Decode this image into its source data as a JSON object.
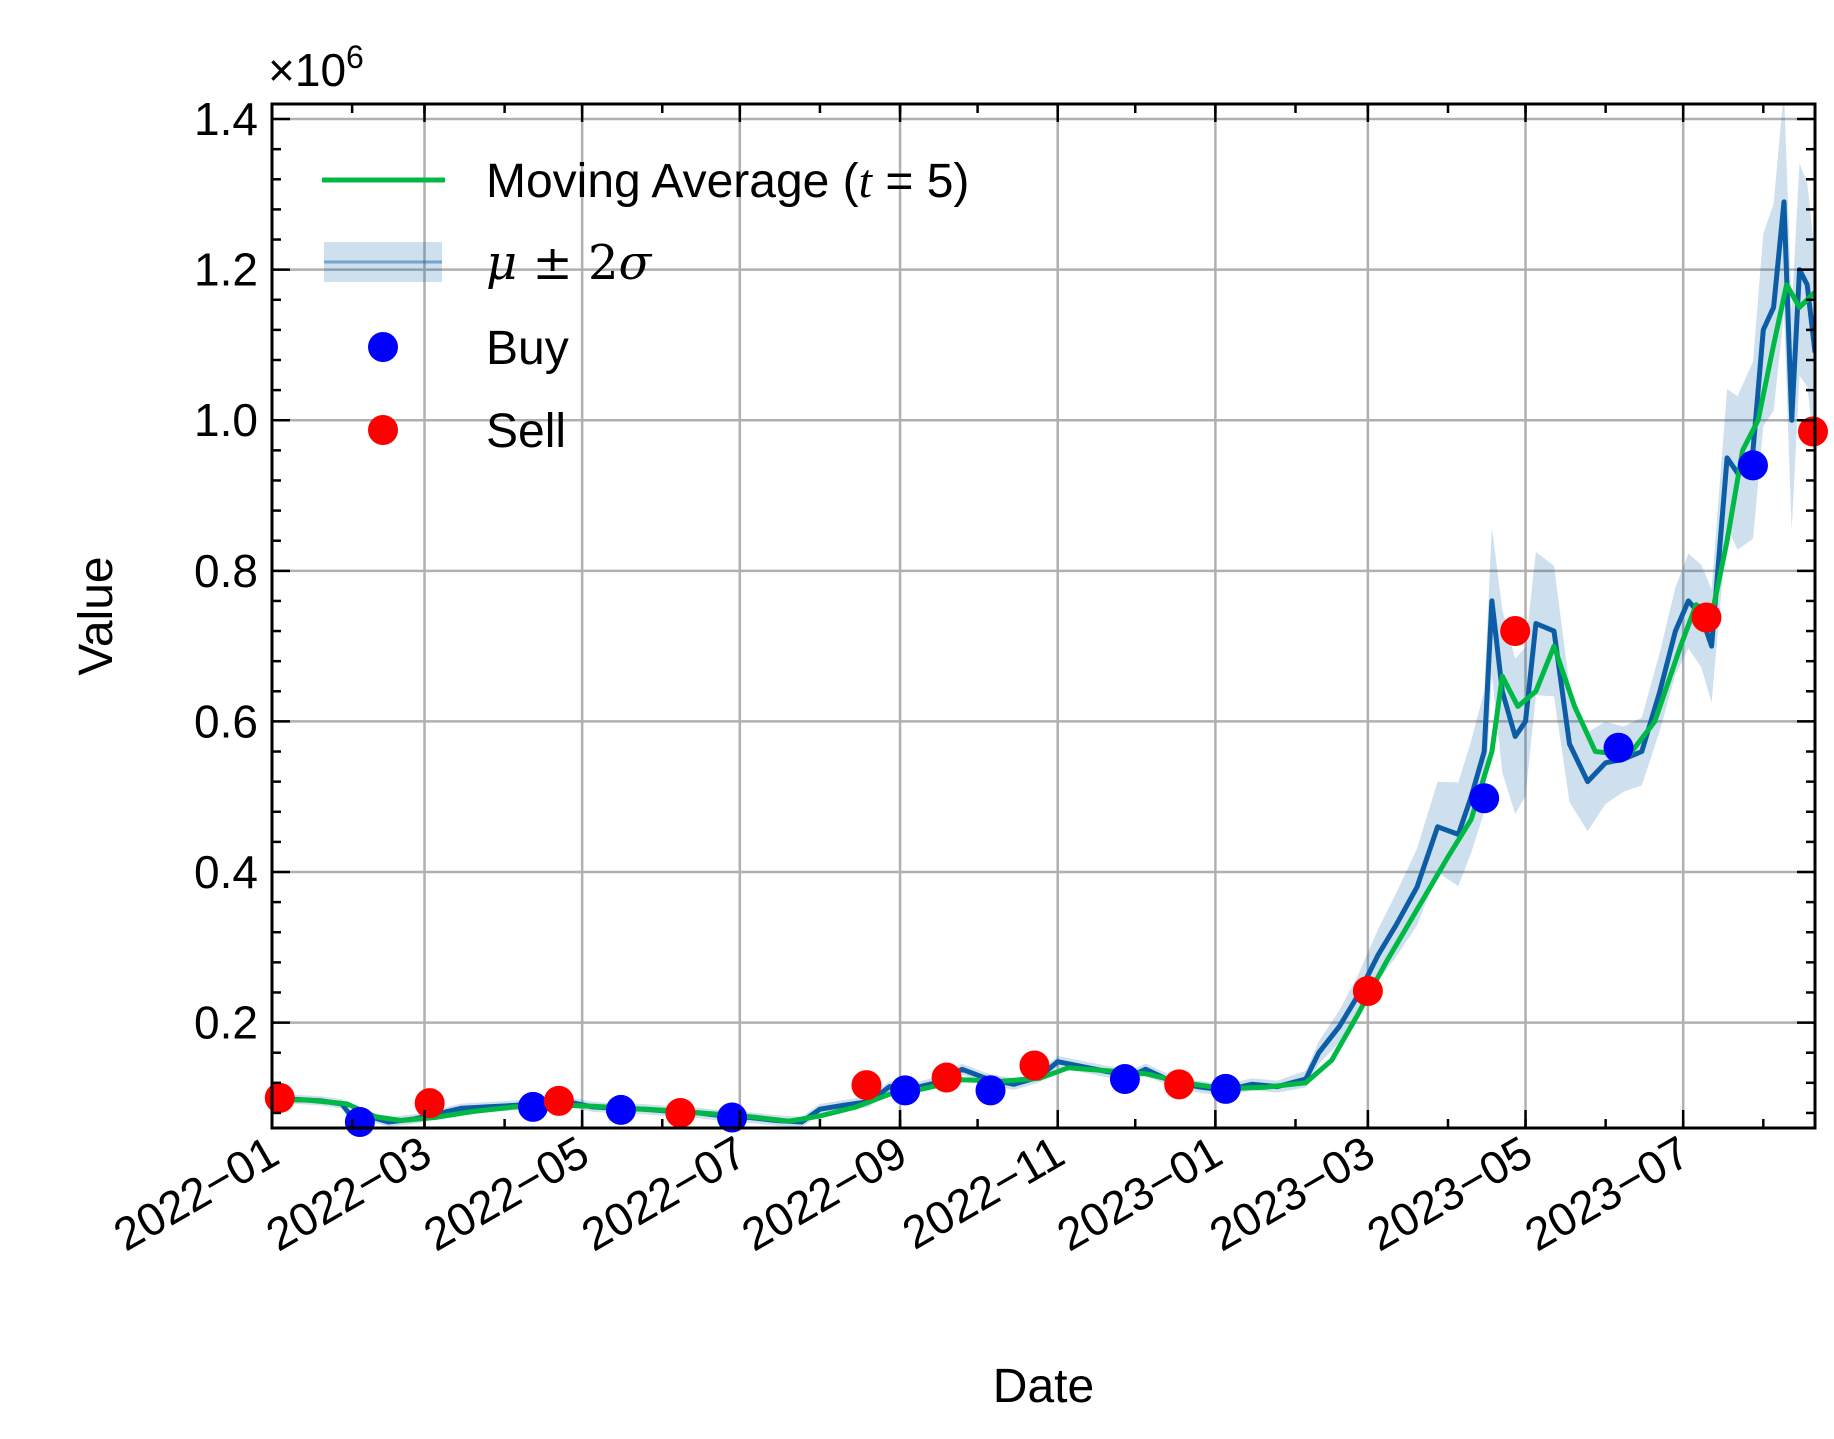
{
  "chart_data": {
    "type": "line",
    "title": "",
    "xlabel": "Date",
    "ylabel": "Value",
    "y_multiplier_label": "×10",
    "y_multiplier_exponent": "6",
    "y_scale": 1000000,
    "ylim": [
      60000,
      1420000
    ],
    "y_ticks": [
      200000,
      400000,
      600000,
      800000,
      1000000,
      1200000,
      1400000
    ],
    "y_tick_labels": [
      "0.2",
      "0.4",
      "0.6",
      "0.8",
      "1.0",
      "1.2",
      "1.4"
    ],
    "xlim": [
      "2022-01-01",
      "2023-08-21"
    ],
    "x_ticks": [
      "2022-01-01",
      "2022-03-01",
      "2022-05-01",
      "2022-07-01",
      "2022-09-01",
      "2022-11-01",
      "2023-01-01",
      "2023-03-01",
      "2023-05-01",
      "2023-07-01"
    ],
    "x_tick_labels": [
      "2022−01",
      "2022−03",
      "2022−05",
      "2022−07",
      "2022−09",
      "2022−11",
      "2023−01",
      "2023−03",
      "2023−05",
      "2023−07"
    ],
    "grid": true,
    "legend_position": "top-left",
    "legend": [
      {
        "label": "Moving Average (",
        "label_italic": "t",
        "label_after": " = 5)",
        "kind": "line"
      },
      {
        "label_math": [
          "μ",
          " ± 2",
          "σ"
        ],
        "kind": "band"
      },
      {
        "label": "Buy",
        "kind": "marker"
      },
      {
        "label": "Sell",
        "kind": "marker"
      }
    ],
    "colors": {
      "value_line": "#0c5da5",
      "moving_average": "#00b945",
      "band": "#0c5da5",
      "buy": "#0000ff",
      "sell": "#ff0000"
    },
    "value_series": [
      [
        "2022-01-01",
        100000
      ],
      [
        "2022-01-10",
        98000
      ],
      [
        "2022-01-20",
        96000
      ],
      [
        "2022-01-28",
        92000
      ],
      [
        "2022-02-03",
        65000
      ],
      [
        "2022-02-08",
        75000
      ],
      [
        "2022-02-15",
        68000
      ],
      [
        "2022-02-25",
        72000
      ],
      [
        "2022-03-05",
        78000
      ],
      [
        "2022-03-15",
        86000
      ],
      [
        "2022-03-25",
        88000
      ],
      [
        "2022-04-05",
        90000
      ],
      [
        "2022-04-15",
        93000
      ],
      [
        "2022-04-25",
        95000
      ],
      [
        "2022-05-05",
        88000
      ],
      [
        "2022-05-15",
        86000
      ],
      [
        "2022-05-25",
        85000
      ],
      [
        "2022-06-05",
        82000
      ],
      [
        "2022-06-15",
        80000
      ],
      [
        "2022-06-25",
        76000
      ],
      [
        "2022-07-05",
        74000
      ],
      [
        "2022-07-15",
        70000
      ],
      [
        "2022-07-25",
        68000
      ],
      [
        "2022-08-01",
        85000
      ],
      [
        "2022-08-10",
        90000
      ],
      [
        "2022-08-20",
        95000
      ],
      [
        "2022-08-28",
        115000
      ],
      [
        "2022-09-05",
        112000
      ],
      [
        "2022-09-15",
        120000
      ],
      [
        "2022-09-25",
        138000
      ],
      [
        "2022-10-05",
        125000
      ],
      [
        "2022-10-15",
        118000
      ],
      [
        "2022-10-25",
        128000
      ],
      [
        "2022-11-01",
        148000
      ],
      [
        "2022-11-10",
        142000
      ],
      [
        "2022-11-20",
        135000
      ],
      [
        "2022-11-30",
        130000
      ],
      [
        "2022-12-05",
        138000
      ],
      [
        "2022-12-15",
        122000
      ],
      [
        "2022-12-25",
        115000
      ],
      [
        "2023-01-05",
        110000
      ],
      [
        "2023-01-15",
        118000
      ],
      [
        "2023-01-25",
        115000
      ],
      [
        "2023-02-05",
        125000
      ],
      [
        "2023-02-10",
        160000
      ],
      [
        "2023-02-18",
        195000
      ],
      [
        "2023-02-25",
        235000
      ],
      [
        "2023-03-05",
        290000
      ],
      [
        "2023-03-12",
        330000
      ],
      [
        "2023-03-20",
        380000
      ],
      [
        "2023-03-28",
        460000
      ],
      [
        "2023-04-05",
        450000
      ],
      [
        "2023-04-10",
        500000
      ],
      [
        "2023-04-15",
        560000
      ],
      [
        "2023-04-18",
        760000
      ],
      [
        "2023-04-22",
        640000
      ],
      [
        "2023-04-27",
        580000
      ],
      [
        "2023-05-01",
        600000
      ],
      [
        "2023-05-05",
        730000
      ],
      [
        "2023-05-12",
        720000
      ],
      [
        "2023-05-18",
        570000
      ],
      [
        "2023-05-25",
        520000
      ],
      [
        "2023-06-01",
        545000
      ],
      [
        "2023-06-08",
        550000
      ],
      [
        "2023-06-15",
        560000
      ],
      [
        "2023-06-22",
        640000
      ],
      [
        "2023-06-28",
        720000
      ],
      [
        "2023-07-03",
        760000
      ],
      [
        "2023-07-08",
        740000
      ],
      [
        "2023-07-12",
        700000
      ],
      [
        "2023-07-18",
        950000
      ],
      [
        "2023-07-22",
        930000
      ],
      [
        "2023-07-28",
        960000
      ],
      [
        "2023-08-01",
        1120000
      ],
      [
        "2023-08-05",
        1150000
      ],
      [
        "2023-08-09",
        1290000
      ],
      [
        "2023-08-12",
        1000000
      ],
      [
        "2023-08-15",
        1200000
      ],
      [
        "2023-08-18",
        1180000
      ],
      [
        "2023-08-21",
        1090000
      ]
    ],
    "moving_average": [
      [
        "2022-01-01",
        98000
      ],
      [
        "2022-01-15",
        97000
      ],
      [
        "2022-01-30",
        92000
      ],
      [
        "2022-02-10",
        75000
      ],
      [
        "2022-02-20",
        70000
      ],
      [
        "2022-03-05",
        74000
      ],
      [
        "2022-03-20",
        82000
      ],
      [
        "2022-04-05",
        88000
      ],
      [
        "2022-04-20",
        91000
      ],
      [
        "2022-05-05",
        89000
      ],
      [
        "2022-05-20",
        86000
      ],
      [
        "2022-06-05",
        83000
      ],
      [
        "2022-06-20",
        79000
      ],
      [
        "2022-07-05",
        75000
      ],
      [
        "2022-07-20",
        69000
      ],
      [
        "2022-08-01",
        76000
      ],
      [
        "2022-08-15",
        88000
      ],
      [
        "2022-08-28",
        105000
      ],
      [
        "2022-09-10",
        112000
      ],
      [
        "2022-09-25",
        124000
      ],
      [
        "2022-10-10",
        122000
      ],
      [
        "2022-10-25",
        126000
      ],
      [
        "2022-11-05",
        140000
      ],
      [
        "2022-11-20",
        136000
      ],
      [
        "2022-12-05",
        132000
      ],
      [
        "2022-12-20",
        120000
      ],
      [
        "2023-01-05",
        112000
      ],
      [
        "2023-01-20",
        114000
      ],
      [
        "2023-02-05",
        120000
      ],
      [
        "2023-02-15",
        150000
      ],
      [
        "2023-02-25",
        210000
      ],
      [
        "2023-03-08",
        280000
      ],
      [
        "2023-03-20",
        350000
      ],
      [
        "2023-04-01",
        420000
      ],
      [
        "2023-04-10",
        470000
      ],
      [
        "2023-04-18",
        560000
      ],
      [
        "2023-04-22",
        660000
      ],
      [
        "2023-04-28",
        620000
      ],
      [
        "2023-05-05",
        640000
      ],
      [
        "2023-05-12",
        700000
      ],
      [
        "2023-05-20",
        620000
      ],
      [
        "2023-05-28",
        560000
      ],
      [
        "2023-06-10",
        555000
      ],
      [
        "2023-06-20",
        600000
      ],
      [
        "2023-06-30",
        700000
      ],
      [
        "2023-07-06",
        755000
      ],
      [
        "2023-07-12",
        740000
      ],
      [
        "2023-07-18",
        840000
      ],
      [
        "2023-07-24",
        960000
      ],
      [
        "2023-07-30",
        1000000
      ],
      [
        "2023-08-05",
        1100000
      ],
      [
        "2023-08-10",
        1180000
      ],
      [
        "2023-08-15",
        1150000
      ],
      [
        "2023-08-21",
        1170000
      ]
    ],
    "band_width": [
      [
        "2022-01-01",
        6000
      ],
      [
        "2023-02-01",
        8000
      ],
      [
        "2023-03-01",
        30000
      ],
      [
        "2023-04-15",
        80000
      ],
      [
        "2023-04-20",
        110000
      ],
      [
        "2023-05-10",
        90000
      ],
      [
        "2023-06-10",
        40000
      ],
      [
        "2023-07-10",
        70000
      ],
      [
        "2023-07-25",
        110000
      ],
      [
        "2023-08-10",
        150000
      ],
      [
        "2023-08-21",
        130000
      ]
    ],
    "buy_points": [
      [
        "2022-02-04",
        68000
      ],
      [
        "2022-04-12",
        88000
      ],
      [
        "2022-05-16",
        84000
      ],
      [
        "2022-06-28",
        74000
      ],
      [
        "2022-09-03",
        110000
      ],
      [
        "2022-10-06",
        110000
      ],
      [
        "2022-11-27",
        125000
      ],
      [
        "2023-01-05",
        112000
      ],
      [
        "2023-04-15",
        498000
      ],
      [
        "2023-06-06",
        565000
      ],
      [
        "2023-07-28",
        940000
      ]
    ],
    "sell_points": [
      [
        "2022-01-04",
        100000
      ],
      [
        "2022-03-03",
        93000
      ],
      [
        "2022-04-22",
        96000
      ],
      [
        "2022-06-08",
        80000
      ],
      [
        "2022-08-19",
        117000
      ],
      [
        "2022-09-19",
        127000
      ],
      [
        "2022-10-23",
        143000
      ],
      [
        "2022-12-18",
        118000
      ],
      [
        "2023-03-01",
        242000
      ],
      [
        "2023-04-27",
        720000
      ],
      [
        "2023-07-10",
        738000
      ],
      [
        "2023-08-23",
        985000
      ]
    ]
  }
}
